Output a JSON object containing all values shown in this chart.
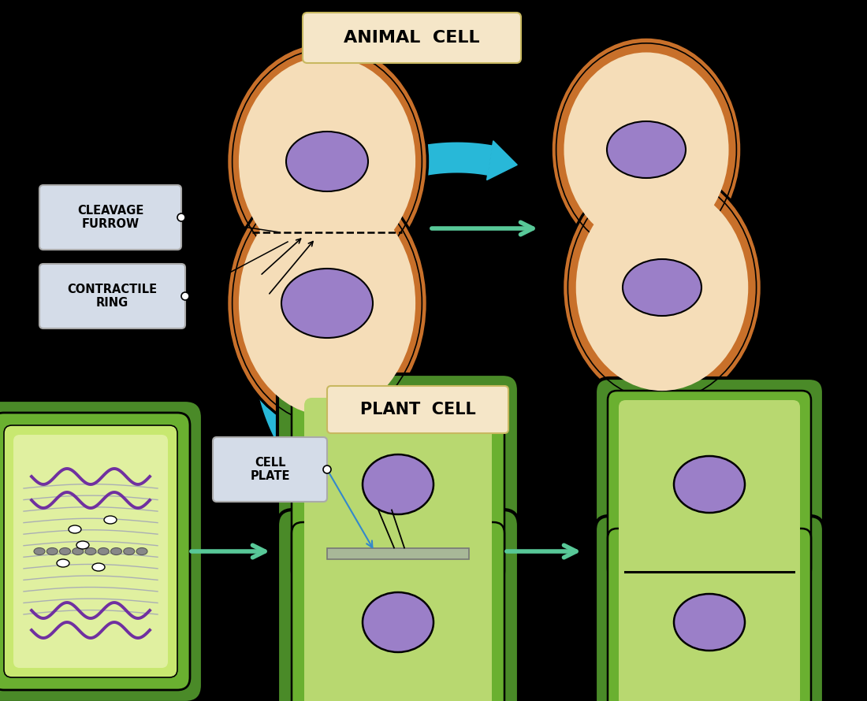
{
  "bg_color": "#000000",
  "animal_cell_label": "ANIMAL  CELL",
  "plant_cell_label": "PLANT  CELL",
  "cleavage_furrow_label": "CLEAVAGE\nFURROW",
  "contractile_ring_label": "CONTRACTILE\nRING",
  "cell_plate_label": "CELL\nPLATE",
  "label_box_color": "#f5e6c8",
  "label_box_color2": "#d4dce8",
  "animal_cell_outer": "#c8702a",
  "animal_cell_inner": "#f5ddb8",
  "nucleus_color": "#9b7fc8",
  "plant_cell_outer": "#4a8a28",
  "plant_cell_mid": "#6ab030",
  "plant_cell_inner": "#b8d870",
  "plant_cell_inner_light": "#d0e888",
  "cell_plate_color": "#a8b898",
  "arrow_color": "#28b8d8",
  "small_arrow_color": "#58c898",
  "spindle_color": "#9999bb",
  "chromosome_color": "#7030a0",
  "figsize": [
    11.0,
    8.9
  ]
}
